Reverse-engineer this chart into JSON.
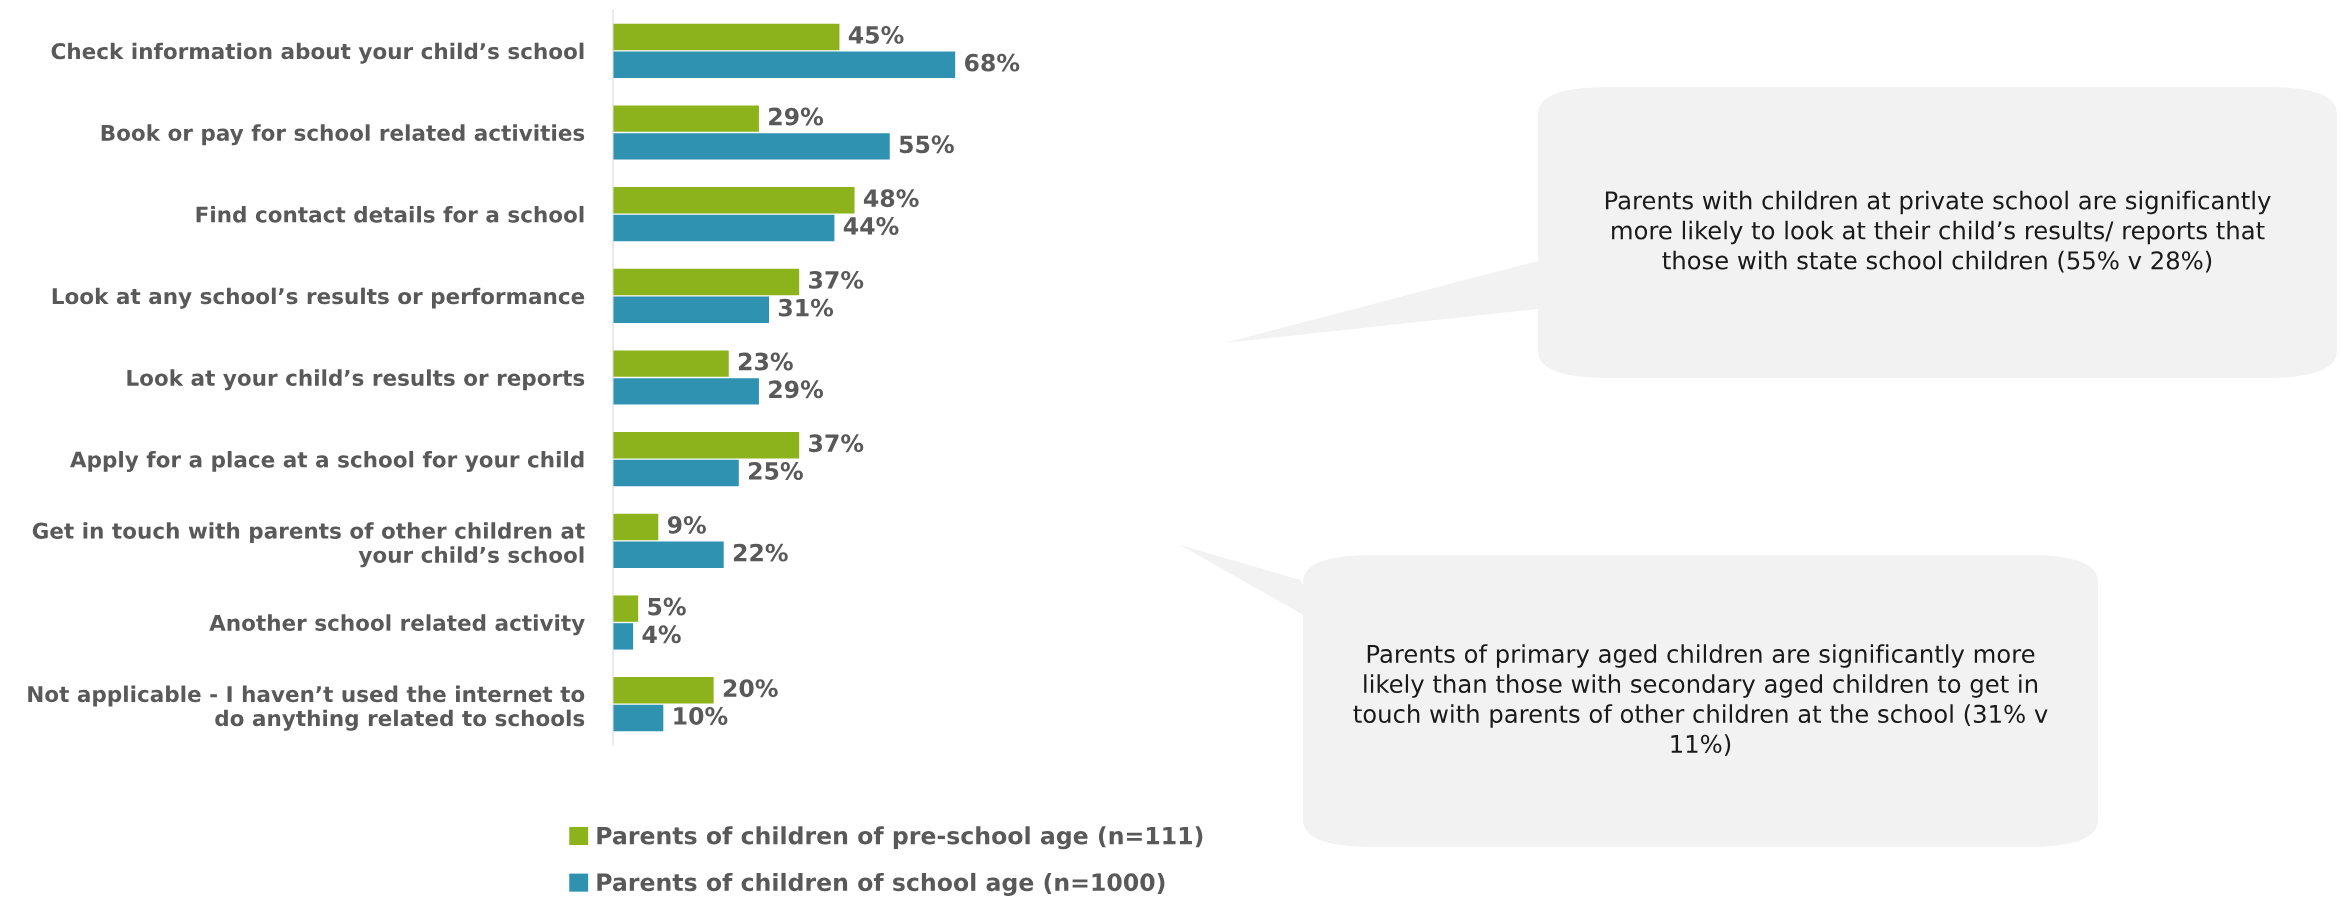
{
  "chart_data": {
    "type": "bar",
    "orientation": "horizontal",
    "tick_labels": "y",
    "grid": false,
    "legend": "bottom",
    "categories": [
      "Check information about your child’s school",
      "Book or pay for school related activities",
      "Find contact details for a school",
      "Look at any school’s results or performance",
      "Look at your child’s results or reports",
      "Apply for a place at a school for your child",
      "Get in touch with parents of other children at your child’s school",
      "Another school related activity",
      "Not applicable - I haven’t used the internet to do anything related to schools"
    ],
    "series": [
      {
        "name": "Parents of children of pre-school age (n=111)",
        "color": "#8cb31c",
        "values": [
          45,
          29,
          48,
          37,
          23,
          37,
          9,
          5,
          20
        ],
        "value_labels": [
          "45%",
          "29%",
          "48%",
          "37%",
          "23%",
          "37%",
          "9%",
          "5%",
          "20%"
        ]
      },
      {
        "name": "Parents of children of school age (n=1000)",
        "color": "#2e92b0",
        "values": [
          68,
          55,
          44,
          31,
          29,
          25,
          22,
          4,
          10
        ],
        "value_labels": [
          "68%",
          "55%",
          "44%",
          "31%",
          "29%",
          "25%",
          "22%",
          "4%",
          "10%"
        ]
      }
    ],
    "annotations": [
      "Parents with children at private school are significantly more likely to look at their child’s results/ reports that those with state school children (55% v 28%)",
      "Parents of primary aged children are significantly more likely than those with secondary aged children to get in touch with parents of other children at the school (31% v 11%)"
    ]
  }
}
